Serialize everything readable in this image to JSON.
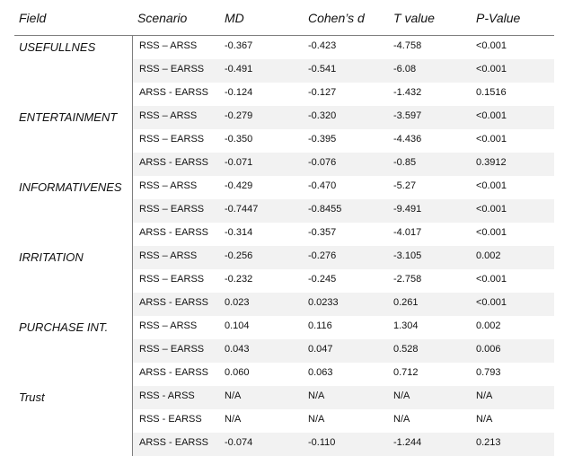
{
  "headers": {
    "field": "Field",
    "scenario": "Scenario",
    "md": "MD",
    "cohens_d": "Cohen’s d",
    "t_value": "T value",
    "p_value": "P-Value"
  },
  "groups": [
    {
      "field": "USEFULLNES",
      "rows": [
        {
          "scenario": "RSS – ARSS",
          "md": "-0.367",
          "cd": "-0.423",
          "t": "-4.758",
          "p": "<0.001"
        },
        {
          "scenario": "RSS – EARSS",
          "md": "-0.491",
          "cd": "-0.541",
          "t": "-6.08",
          "p": "<0.001"
        },
        {
          "scenario": "ARSS - EARSS",
          "md": "-0.124",
          "cd": "-0.127",
          "t": "-1.432",
          "p": "0.1516"
        }
      ]
    },
    {
      "field": "ENTERTAINMENT",
      "rows": [
        {
          "scenario": "RSS – ARSS",
          "md": "-0.279",
          "cd": "-0.320",
          "t": "-3.597",
          "p": "<0.001"
        },
        {
          "scenario": "RSS – EARSS",
          "md": "-0.350",
          "cd": "-0.395",
          "t": "-4.436",
          "p": "<0.001"
        },
        {
          "scenario": "ARSS - EARSS",
          "md": "-0.071",
          "cd": "-0.076",
          "t": "-0.85",
          "p": "0.3912"
        }
      ]
    },
    {
      "field": "INFORMATIVENES",
      "rows": [
        {
          "scenario": "RSS – ARSS",
          "md": "-0.429",
          "cd": "-0.470",
          "t": "-5.27",
          "p": "<0.001"
        },
        {
          "scenario": "RSS – EARSS",
          "md": "-0.7447",
          "cd": "-0.8455",
          "t": "-9.491",
          "p": "<0.001"
        },
        {
          "scenario": "ARSS - EARSS",
          "md": "-0.314",
          "cd": "-0.357",
          "t": "-4.017",
          "p": "<0.001"
        }
      ]
    },
    {
      "field": "IRRITATION",
      "rows": [
        {
          "scenario": "RSS – ARSS",
          "md": "-0.256",
          "cd": "-0.276",
          "t": "-3.105",
          "p": "0.002"
        },
        {
          "scenario": "RSS – EARSS",
          "md": "-0.232",
          "cd": "-0.245",
          "t": "-2.758",
          "p": "<0.001"
        },
        {
          "scenario": "ARSS - EARSS",
          "md": "0.023",
          "cd": "0.0233",
          "t": "0.261",
          "p": "<0.001"
        }
      ]
    },
    {
      "field": "PURCHASE INT.",
      "rows": [
        {
          "scenario": "RSS – ARSS",
          "md": "0.104",
          "cd": "0.116",
          "t": "1.304",
          "p": "0.002"
        },
        {
          "scenario": "RSS – EARSS",
          "md": "0.043",
          "cd": "0.047",
          "t": "0.528",
          "p": "0.006"
        },
        {
          "scenario": "ARSS - EARSS",
          "md": "0.060",
          "cd": "0.063",
          "t": "0.712",
          "p": "0.793"
        }
      ]
    },
    {
      "field": "Trust",
      "rows": [
        {
          "scenario": "RSS - ARSS",
          "md": "N/A",
          "cd": "N/A",
          "t": "N/A",
          "p": "N/A"
        },
        {
          "scenario": "RSS - EARSS",
          "md": "N/A",
          "cd": "N/A",
          "t": "N/A",
          "p": "N/A"
        },
        {
          "scenario": "ARSS - EARSS",
          "md": "-0.074",
          "cd": "-0.110",
          "t": "-1.244",
          "p": "0.213"
        }
      ]
    }
  ],
  "colors": {
    "row_shade": "#f2f2f2",
    "rule": "#7f7f7f",
    "text": "#111111"
  }
}
